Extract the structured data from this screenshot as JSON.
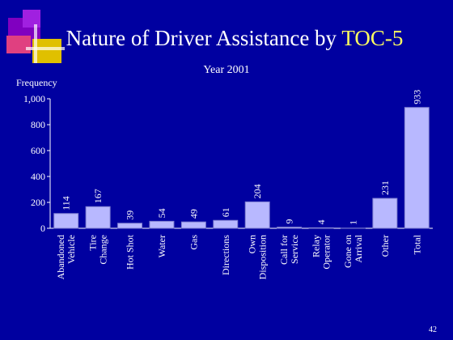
{
  "chart_data": {
    "type": "bar",
    "title": {
      "text": "Nature of Driver Assistance by",
      "highlight": "TOC-5"
    },
    "subtitle": "Year 2001",
    "y_label": "Frequency",
    "categories": [
      [
        "Abandoned",
        "Vehicle"
      ],
      [
        "Tire",
        "Change"
      ],
      [
        "Hot Shot"
      ],
      [
        "Water"
      ],
      [
        "Gas"
      ],
      [
        "Directions"
      ],
      [
        "Own",
        "Disposition"
      ],
      [
        "Call for",
        "Service"
      ],
      [
        "Relay",
        "Operator"
      ],
      [
        "Gone on",
        "Arrival"
      ],
      [
        "Other"
      ],
      [
        "Total"
      ]
    ],
    "values": [
      114,
      167,
      39,
      54,
      49,
      61,
      204,
      9,
      4,
      1,
      231,
      933
    ],
    "color": "#b8b8ff",
    "label_colors": [
      "#f0f0a0",
      "#ffffff"
    ],
    "ylim": [
      0,
      1000
    ],
    "yticks": [
      0,
      200,
      400,
      600,
      800,
      {
        "value": 1000,
        "label": "1,000"
      }
    ],
    "page_number": "42"
  }
}
